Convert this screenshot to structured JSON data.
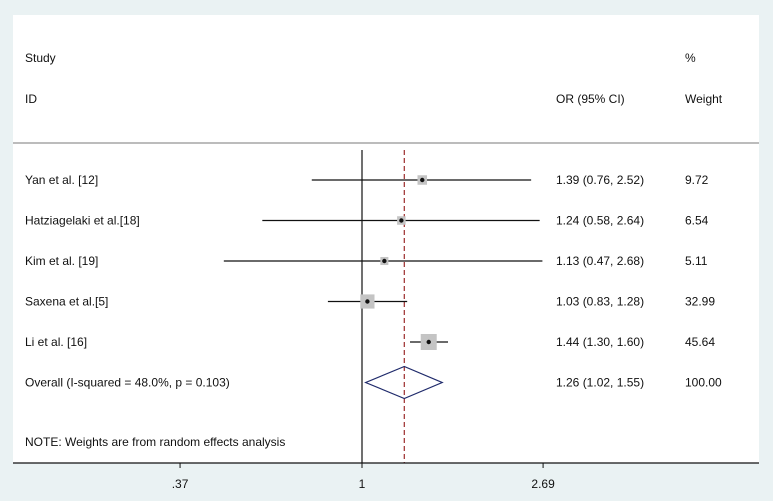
{
  "chart_data": {
    "type": "forest",
    "scale": "log",
    "header": {
      "study_line1": "Study",
      "study_line2": "ID",
      "effect_label": "OR (95% CI)",
      "weight_line1": "%",
      "weight_line2": "Weight"
    },
    "studies": [
      {
        "id": "Yan et al. [12]",
        "or": 1.39,
        "lower": 0.76,
        "upper": 2.52,
        "ci_text": "1.39 (0.76, 2.52)",
        "weight": 9.72,
        "weight_text": "9.72"
      },
      {
        "id": "Hatziagelaki et al.[18]",
        "or": 1.24,
        "lower": 0.58,
        "upper": 2.64,
        "ci_text": "1.24 (0.58, 2.64)",
        "weight": 6.54,
        "weight_text": "6.54"
      },
      {
        "id": "Kim et al. [19]",
        "or": 1.13,
        "lower": 0.47,
        "upper": 2.68,
        "ci_text": "1.13 (0.47, 2.68)",
        "weight": 5.11,
        "weight_text": "5.11"
      },
      {
        "id": "Saxena et al.[5]",
        "or": 1.03,
        "lower": 0.83,
        "upper": 1.28,
        "ci_text": "1.03 (0.83, 1.28)",
        "weight": 32.99,
        "weight_text": "32.99"
      },
      {
        "id": "Li et al. [16]",
        "or": 1.44,
        "lower": 1.3,
        "upper": 1.6,
        "ci_text": "1.44 (1.30, 1.60)",
        "weight": 45.64,
        "weight_text": "45.64"
      }
    ],
    "overall": {
      "id": "Overall  (I-squared = 48.0%, p = 0.103)",
      "or": 1.26,
      "lower": 1.02,
      "upper": 1.55,
      "ci_text": "1.26 (1.02, 1.55)",
      "weight_text": "100.00"
    },
    "note": "NOTE: Weights are from random effects analysis",
    "x_ticks": [
      {
        "value": 0.37,
        "label": ".37"
      },
      {
        "value": 1,
        "label": "1"
      },
      {
        "value": 2.69,
        "label": "2.69"
      }
    ],
    "null_line": 1,
    "colors": {
      "diamond": "#1f2a6b",
      "dashed_line": "#9b2b2b",
      "box": "#c4c4c4"
    }
  }
}
